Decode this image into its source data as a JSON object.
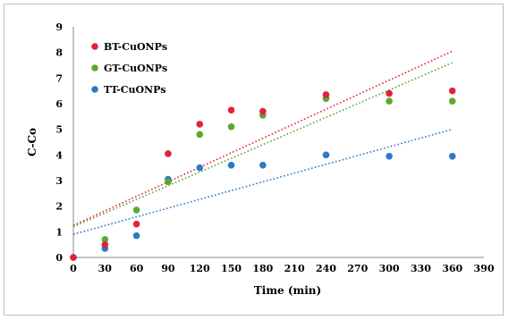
{
  "chart_data": {
    "type": "scatter",
    "title": "",
    "xlabel": "Time (min)",
    "ylabel": "C-Co",
    "xlim": [
      0,
      390
    ],
    "ylim": [
      0,
      9
    ],
    "xticks": [
      0,
      30,
      60,
      90,
      120,
      150,
      180,
      210,
      240,
      270,
      300,
      330,
      360,
      390
    ],
    "yticks": [
      0,
      1,
      2,
      3,
      4,
      5,
      6,
      7,
      8,
      9
    ],
    "grid": false,
    "legend_position": "top-left",
    "series": [
      {
        "name": "BT-CuONPs",
        "color": "#e5203a",
        "x": [
          0,
          30,
          60,
          90,
          120,
          150,
          180,
          240,
          300,
          360
        ],
        "y": [
          0,
          0.5,
          1.3,
          4.05,
          5.2,
          5.75,
          5.7,
          6.35,
          6.4,
          6.5
        ],
        "trendline": {
          "type": "linear",
          "x": [
            0,
            360
          ],
          "y": [
            1.25,
            8.05
          ]
        }
      },
      {
        "name": "GT-CuONPs",
        "color": "#5aa832",
        "x": [
          0,
          30,
          60,
          90,
          120,
          150,
          180,
          240,
          300,
          360
        ],
        "y": [
          0,
          0.7,
          1.85,
          2.95,
          4.8,
          5.1,
          5.55,
          6.2,
          6.1,
          6.1
        ],
        "trendline": {
          "type": "linear",
          "x": [
            0,
            360
          ],
          "y": [
            1.2,
            7.6
          ]
        }
      },
      {
        "name": "TT-CuONPs",
        "color": "#2e78c6",
        "x": [
          0,
          30,
          60,
          90,
          120,
          150,
          180,
          240,
          300,
          360
        ],
        "y": [
          0,
          0.35,
          0.85,
          3.05,
          3.5,
          3.6,
          3.6,
          4.0,
          3.95,
          3.95
        ],
        "trendline": {
          "type": "linear",
          "x": [
            0,
            360
          ],
          "y": [
            0.9,
            5.0
          ]
        }
      }
    ]
  }
}
